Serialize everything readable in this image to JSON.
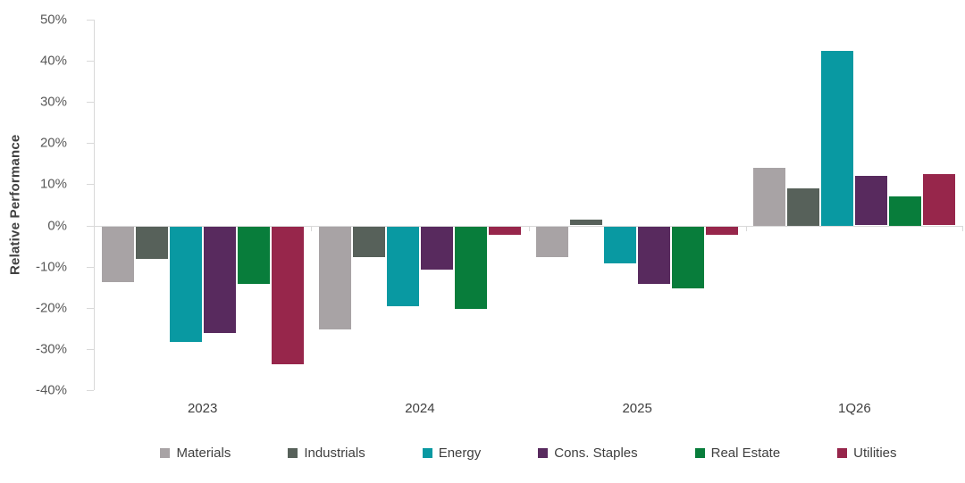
{
  "chart_data": {
    "type": "bar",
    "title": "",
    "ylabel": "Relative Performance",
    "xlabel": "",
    "categories": [
      "2023",
      "2024",
      "2025",
      "1Q26"
    ],
    "series": [
      {
        "name": "Materials",
        "color": "#A8A3A5",
        "values": [
          -13.5,
          -25,
          -7.5,
          14
        ]
      },
      {
        "name": "Industrials",
        "color": "#57615A",
        "values": [
          -8,
          -7.5,
          1.5,
          9
        ]
      },
      {
        "name": "Energy",
        "color": "#0999A2",
        "values": [
          -28,
          -19.5,
          -9,
          42.5
        ]
      },
      {
        "name": "Cons. Staples",
        "color": "#582A5E",
        "values": [
          -26,
          -10.5,
          -14,
          12
        ]
      },
      {
        "name": "Real Estate",
        "color": "#087D3B",
        "values": [
          -14,
          -20,
          -15,
          7
        ]
      },
      {
        "name": "Utilities",
        "color": "#97264B",
        "values": [
          -33.5,
          -2,
          -2,
          12.5
        ]
      }
    ],
    "ylim": [
      -40,
      50
    ],
    "ytick_step": 10,
    "ytick_labels": [
      "50%",
      "40%",
      "30%",
      "20%",
      "10%",
      "0%",
      "-10%",
      "-20%",
      "-30%",
      "-40%"
    ],
    "grid": false,
    "legend_position": "bottom",
    "axis_color": "#D9D9D9",
    "tick_label_color": "#595959",
    "category_label_color": "#3F3F3F"
  }
}
